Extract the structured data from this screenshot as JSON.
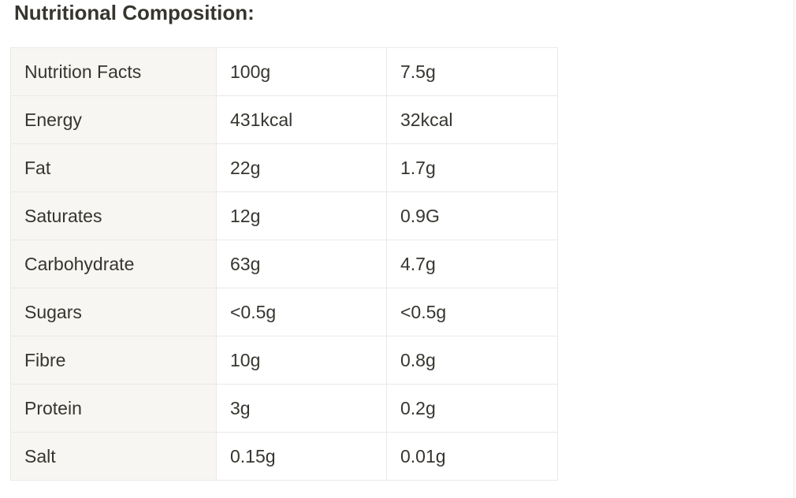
{
  "header": {
    "title": "Nutritional Composition:"
  },
  "table": {
    "rows": [
      [
        "Nutrition Facts",
        "100g",
        "7.5g"
      ],
      [
        "Energy",
        "431kcal",
        "32kcal"
      ],
      [
        "Fat",
        "22g",
        "1.7g"
      ],
      [
        "Saturates",
        "12g",
        "0.9G"
      ],
      [
        "Carbohydrate",
        "63g",
        "4.7g"
      ],
      [
        "Sugars",
        "<0.5g",
        "<0.5g"
      ],
      [
        "Fibre",
        "10g",
        "0.8g"
      ],
      [
        "Protein",
        "3g",
        "0.2g"
      ],
      [
        "Salt",
        "0.15g",
        "0.01g"
      ]
    ]
  }
}
